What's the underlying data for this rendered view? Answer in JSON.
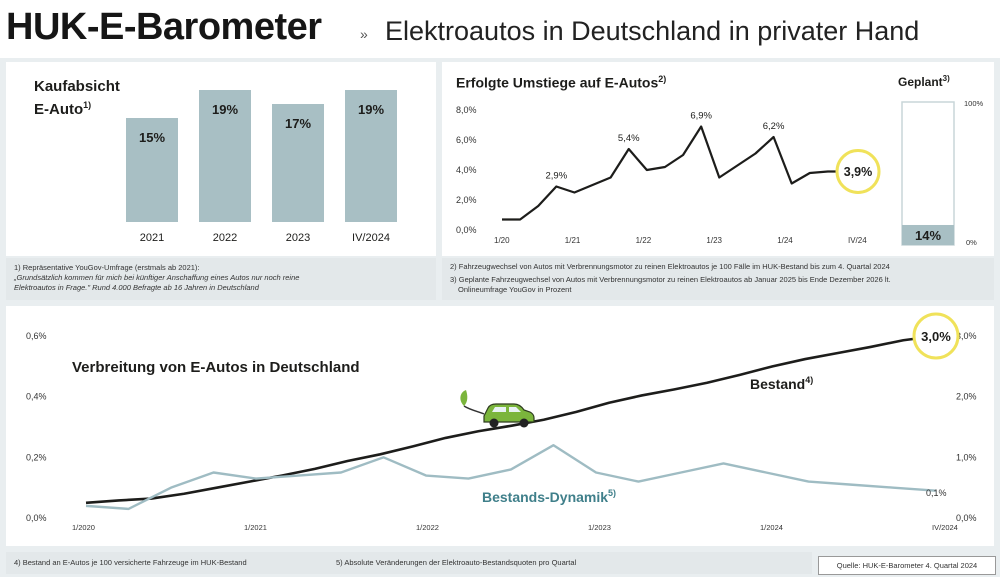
{
  "header": {
    "brand": "HUK-E-Barometer",
    "separator": "»",
    "subtitle": "Elektroautos in Deutschland in privater Hand"
  },
  "colors": {
    "bar": "#a8bfc4",
    "line_dark": "#1d1d1b",
    "line_teal": "#9fbcc3",
    "highlight_ring": "#f0e25a",
    "car_green": "#7bb53c"
  },
  "icons": [
    "electric-car-icon"
  ],
  "chart_data": [
    {
      "type": "bar",
      "title": "Kaufabsicht E-Auto",
      "title_line1": "Kaufabsicht",
      "title_line2": "E-Auto",
      "title_sup": "1)",
      "categories": [
        "2021",
        "2022",
        "2023",
        "IV/2024"
      ],
      "values": [
        15,
        19,
        17,
        19
      ],
      "value_labels": [
        "15%",
        "19%",
        "17%",
        "19%"
      ],
      "unit": "%"
    },
    {
      "type": "line",
      "title": "Erfolgte Umstiege auf E-Autos",
      "title_sup": "2)",
      "x_tick_labels": [
        "1/20",
        "1/21",
        "1/22",
        "1/23",
        "1/24",
        "IV/24"
      ],
      "y_tick_labels": [
        "8,0%",
        "6,0%",
        "4,0%",
        "2,0%",
        "0,0%"
      ],
      "ylim": [
        0,
        8
      ],
      "series": [
        {
          "values": [
            0.7,
            0.7,
            1.6,
            2.9,
            2.5,
            3.0,
            3.5,
            5.4,
            4.0,
            4.2,
            5.0,
            6.9,
            3.5,
            4.3,
            5.1,
            6.2,
            3.1,
            3.8,
            3.9,
            3.9
          ]
        }
      ],
      "point_labels": [
        {
          "index": 3,
          "text": "2,9%"
        },
        {
          "index": 7,
          "text": "5,4%"
        },
        {
          "index": 11,
          "text": "6,9%"
        },
        {
          "index": 15,
          "text": "6,2%"
        }
      ],
      "highlight": {
        "index": 19,
        "text": "3,9%"
      }
    },
    {
      "type": "bar",
      "title": "Geplant",
      "title_sup": "3)",
      "values": [
        14
      ],
      "value_labels": [
        "14%"
      ],
      "ylim": [
        0,
        100
      ],
      "y_tick_labels": [
        "100%",
        "0%"
      ]
    },
    {
      "type": "line",
      "title": "Verbreitung von E-Autos in Deutschland",
      "x_tick_labels": [
        "1/2020",
        "1/2021",
        "1/2022",
        "1/2023",
        "1/2024",
        "IV/2024"
      ],
      "y_left_tick_labels": [
        "0,6%",
        "0,4%",
        "0,2%",
        "0,0%"
      ],
      "y_right_tick_labels": [
        "3,0%",
        "2,0%",
        "1,0%",
        "0,0%"
      ],
      "ylim_left": [
        0,
        0.6
      ],
      "ylim_right": [
        0,
        3.0
      ],
      "series": [
        {
          "name": "Bestand",
          "name_sup": "4)",
          "axis": "right",
          "values": [
            0.25,
            0.29,
            0.32,
            0.4,
            0.5,
            0.6,
            0.7,
            0.81,
            0.94,
            1.05,
            1.18,
            1.32,
            1.43,
            1.52,
            1.62,
            1.75,
            1.9,
            2.02,
            2.12,
            2.23,
            2.36,
            2.5,
            2.62,
            2.72,
            2.82,
            2.93,
            3.0
          ]
        },
        {
          "name": "Bestands-Dynamik",
          "name_sup": "5)",
          "axis": "left",
          "values": [
            0.04,
            0.03,
            0.1,
            0.15,
            0.13,
            0.14,
            0.15,
            0.2,
            0.14,
            0.13,
            0.16,
            0.24,
            0.15,
            0.12,
            0.15,
            0.18,
            0.15,
            0.12,
            0.11,
            0.1,
            0.09
          ]
        }
      ],
      "highlight": {
        "text": "3,0%"
      },
      "end_label": "0,1%"
    }
  ],
  "footnotes": {
    "f1_line1": "1) Repräsentative YouGov-Umfrage (erstmals ab 2021):",
    "f1_line2": "„Grundsätzlich kommen für mich bei künftiger Anschaffung eines Autos nur noch reine",
    "f1_line3": "Elektroautos in Frage.\" Rund 4.000 Befragte ab 16 Jahren in Deutschland",
    "f2": "2) Fahrzeugwechsel von Autos mit Verbrennungsmotor zu reinen Elektroautos je 100 Fälle im HUK-Bestand bis zum 4. Quartal 2024",
    "f3_line1": "3) Geplante Fahrzeugwechsel von Autos mit Verbrennungsmotor zu reinen Elektroautos ab Januar 2025 bis Ende Dezember 2026 lt.",
    "f3_line2": "Onlineumfrage YouGov in Prozent",
    "f4": "4) Bestand an E-Autos je 100 versicherte Fahrzeuge im HUK-Bestand",
    "f5": "5) Absolute Veränderungen der Elektroauto-Bestandsquoten pro Quartal",
    "source": "Quelle: HUK-E-Barometer 4. Quartal 2024"
  }
}
